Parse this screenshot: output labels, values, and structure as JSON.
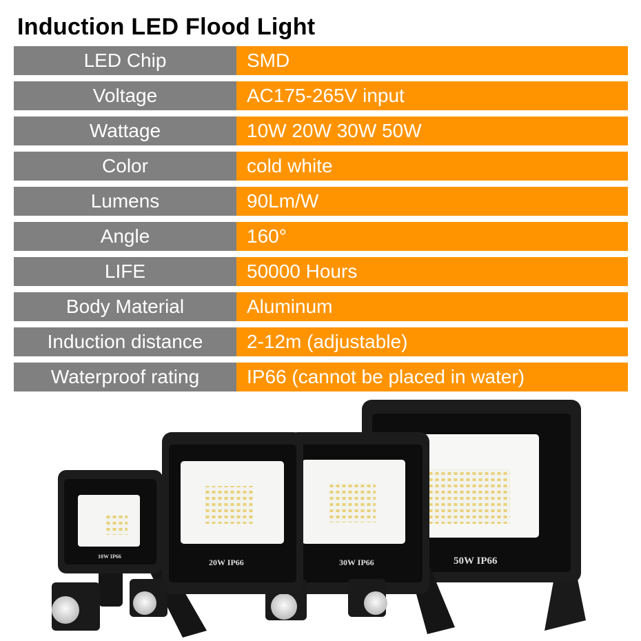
{
  "title": "Induction LED Flood Light",
  "specs": [
    {
      "label": "LED Chip",
      "value": "SMD"
    },
    {
      "label": "Voltage",
      "value": "AC175-265V input"
    },
    {
      "label": "Wattage",
      "value": "10W 20W 30W 50W"
    },
    {
      "label": "Color",
      "value": "cold white"
    },
    {
      "label": "Lumens",
      "value": "90Lm/W"
    },
    {
      "label": "Angle",
      "value": "160°"
    },
    {
      "label": "LIFE",
      "value": "50000 Hours"
    },
    {
      "label": "Body Material",
      "value": "Aluminum"
    },
    {
      "label": "Induction distance",
      "value": "2-12m (adjustable)"
    },
    {
      "label": "Waterproof rating",
      "value": "IP66 (cannot be placed in water)"
    }
  ],
  "colors": {
    "label_bg": "#808080",
    "value_bg": "#ff9400",
    "text": "#ffffff"
  },
  "product_labels": [
    "10W  IP66",
    "20W  IP66",
    "30W  IP66",
    "50W  IP66"
  ]
}
